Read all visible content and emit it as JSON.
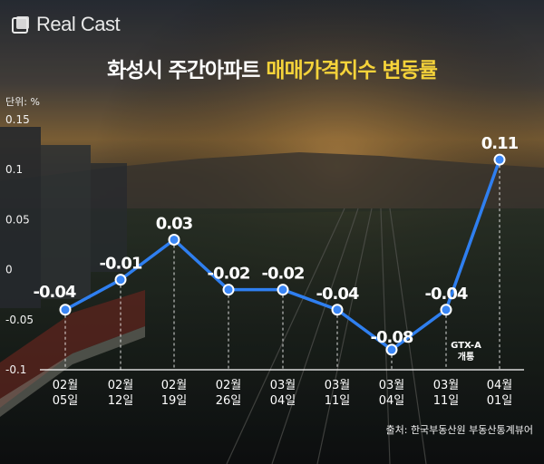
{
  "brand": {
    "name": "Real Cast"
  },
  "title": {
    "part1": "화성시 주간아파트 ",
    "part2": "매매가격지수 변동률"
  },
  "unit_label": "단위: %",
  "source": "출처: 한국부동산원 부동산통계뷰어",
  "chart_data": {
    "type": "line",
    "categories": [
      [
        "02월",
        "05일"
      ],
      [
        "02월",
        "12일"
      ],
      [
        "02월",
        "19일"
      ],
      [
        "02월",
        "26일"
      ],
      [
        "03월",
        "04일"
      ],
      [
        "03월",
        "11일"
      ],
      [
        "03월",
        "04일"
      ],
      [
        "03월",
        "11일"
      ],
      [
        "04월",
        "01일"
      ]
    ],
    "values": [
      -0.04,
      -0.01,
      0.03,
      -0.02,
      -0.02,
      -0.04,
      -0.08,
      -0.04,
      0.11
    ],
    "value_labels": [
      "-0.04",
      "-0.01",
      "0.03",
      "-0.02",
      "-0.02",
      "-0.04",
      "-0.08",
      "-0.04",
      "0.11"
    ],
    "ylim": [
      -0.1,
      0.15
    ],
    "yticks": [
      -0.1,
      -0.05,
      0,
      0.05,
      0.1,
      0.15
    ],
    "ytick_labels": [
      "-0.1",
      "-0.05",
      "0",
      "0.05",
      "0.1",
      "0.15"
    ],
    "annotation": {
      "index": 8,
      "lines": [
        "GTX-A",
        "개통"
      ]
    },
    "line_color": "#2f7ff0",
    "point_color": "#3a86f5",
    "grid": false
  }
}
